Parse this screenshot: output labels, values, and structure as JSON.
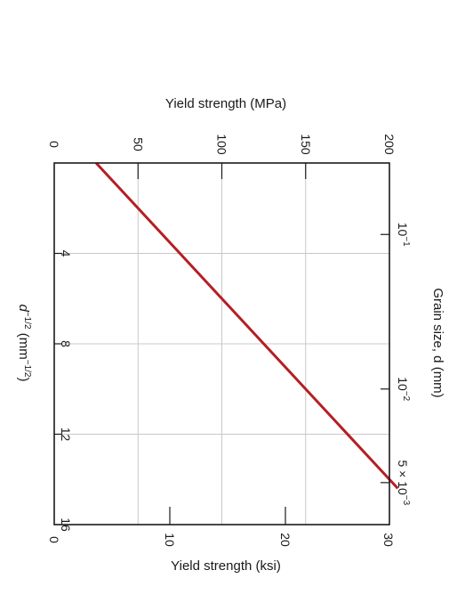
{
  "chart_data": {
    "type": "line",
    "title": "",
    "rotated": "90deg-clockwise",
    "x_axis": {
      "label": "d^-1/2 (mm^-1/2)",
      "label_parts": {
        "base": "d",
        "sup1": "−1/2",
        "mid": " (mm",
        "sup2": "−1/2",
        "end": ")"
      },
      "range": [
        0,
        16
      ],
      "ticks": [
        0,
        4,
        8,
        12,
        16
      ],
      "tick_labels": [
        "",
        "4",
        "8",
        "12",
        "16"
      ]
    },
    "y_axis_mpa": {
      "label": "Yield strength (MPa)",
      "range": [
        0,
        200
      ],
      "ticks": [
        0,
        50,
        100,
        150,
        200
      ],
      "tick_labels": [
        "0",
        "50",
        "100",
        "150",
        "200"
      ]
    },
    "y_axis_ksi": {
      "label": "Yield strength (ksi)",
      "range": [
        0,
        29
      ],
      "ticks": [
        0,
        10,
        20,
        30
      ],
      "tick_labels": [
        "0",
        "10",
        "20",
        "30"
      ]
    },
    "secondary_x_axis": {
      "label": "Grain size, d (mm)",
      "ticks_mm": [
        0.1,
        0.01,
        0.005
      ],
      "tick_labels": [
        {
          "base": "10",
          "sup": "−1"
        },
        {
          "base": "10",
          "sup": "−2"
        },
        {
          "base": "5 × 10",
          "sup": "−3"
        }
      ]
    },
    "series": [
      {
        "color": "#b51e23",
        "x": [
          0,
          14.4
        ],
        "y": [
          25,
          205
        ]
      }
    ],
    "grid": true,
    "colors": {
      "line": "#b51e23"
    }
  }
}
